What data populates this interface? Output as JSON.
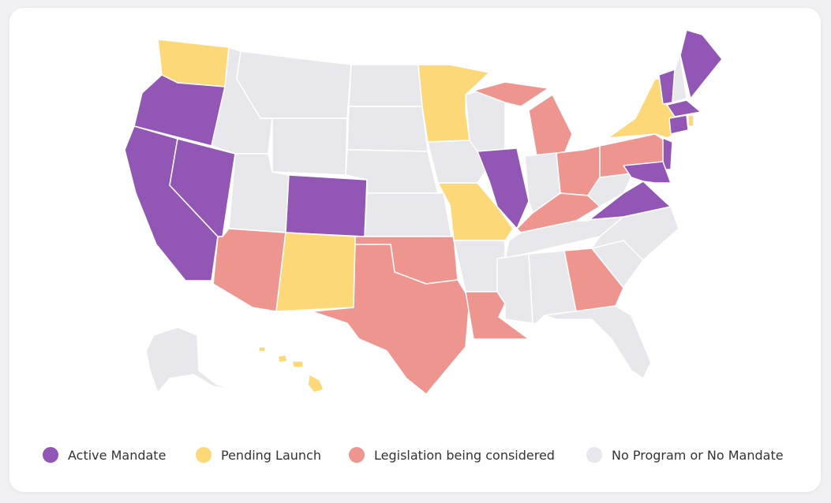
{
  "legend": [
    {
      "label": "Active Mandate",
      "color": "#9256b5"
    },
    {
      "label": "Pending Launch",
      "color": "#fdd878"
    },
    {
      "label": "Legislation being considered",
      "color": "#ee958f"
    },
    {
      "label": "No Program or No Mandate",
      "color": "#e8e7eb"
    }
  ]
}
